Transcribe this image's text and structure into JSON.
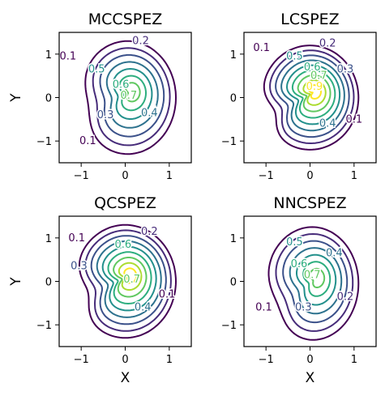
{
  "figure": {
    "xlabel": "X",
    "ylabel": "Y"
  },
  "chart_data": [
    {
      "type": "contour",
      "title": "MCCSPEZ",
      "xlabel": "",
      "ylabel": "Y",
      "xlim": [
        -1.5,
        1.5
      ],
      "ylim": [
        -1.5,
        1.5
      ],
      "xticks": [
        "−1",
        "0",
        "1"
      ],
      "yticks": [
        "−1",
        "0",
        "1"
      ],
      "levels": [
        0.1,
        0.2,
        0.3,
        0.4,
        0.5,
        0.6,
        0.7
      ],
      "contour_labels": [
        {
          "text": "0.1",
          "x": -1.3,
          "y": 0.95
        },
        {
          "text": "0.2",
          "x": 0.35,
          "y": 1.3
        },
        {
          "text": "0.5",
          "x": -0.65,
          "y": 0.65
        },
        {
          "text": "0.6",
          "x": -0.1,
          "y": 0.3
        },
        {
          "text": "0.7",
          "x": 0.08,
          "y": 0.05
        },
        {
          "text": "0.3",
          "x": -0.45,
          "y": -0.4
        },
        {
          "text": "0.4",
          "x": 0.55,
          "y": -0.35
        },
        {
          "text": "0.1",
          "x": -0.85,
          "y": -1.0
        }
      ]
    },
    {
      "type": "contour",
      "title": "LCSPEZ",
      "xlabel": "",
      "ylabel": "",
      "xlim": [
        -1.5,
        1.5
      ],
      "ylim": [
        -1.5,
        1.5
      ],
      "xticks": [
        "−1",
        "0",
        "1"
      ],
      "yticks": [
        "−1",
        "0",
        "1"
      ],
      "levels": [
        0.1,
        0.2,
        0.3,
        0.4,
        0.5,
        0.6,
        0.7,
        0.8,
        0.9
      ],
      "contour_labels": [
        {
          "text": "0.1",
          "x": -1.1,
          "y": 1.15
        },
        {
          "text": "0.2",
          "x": 0.4,
          "y": 1.25
        },
        {
          "text": "0.5",
          "x": -0.35,
          "y": 0.95
        },
        {
          "text": "0.3",
          "x": 0.8,
          "y": 0.65
        },
        {
          "text": "0.6",
          "x": 0.05,
          "y": 0.7
        },
        {
          "text": "0.7",
          "x": 0.2,
          "y": 0.5
        },
        {
          "text": "0.9",
          "x": 0.1,
          "y": 0.25
        },
        {
          "text": "0.4",
          "x": 0.4,
          "y": -0.6
        },
        {
          "text": "0.1",
          "x": 1.0,
          "y": -0.5
        }
      ]
    },
    {
      "type": "contour",
      "title": "QCSPEZ",
      "xlabel": "X",
      "ylabel": "Y",
      "xlim": [
        -1.5,
        1.5
      ],
      "ylim": [
        -1.5,
        1.5
      ],
      "xticks": [
        "−1",
        "0",
        "1"
      ],
      "yticks": [
        "−1",
        "0",
        "1"
      ],
      "levels": [
        0.1,
        0.2,
        0.3,
        0.4,
        0.5,
        0.6,
        0.7,
        0.8,
        0.9
      ],
      "contour_labels": [
        {
          "text": "0.1",
          "x": -1.1,
          "y": 1.0
        },
        {
          "text": "0.2",
          "x": 0.55,
          "y": 1.15
        },
        {
          "text": "0.6",
          "x": -0.05,
          "y": 0.85
        },
        {
          "text": "0.3",
          "x": -1.05,
          "y": 0.35
        },
        {
          "text": "0.7",
          "x": 0.15,
          "y": 0.05
        },
        {
          "text": "0.4",
          "x": 0.4,
          "y": -0.6
        },
        {
          "text": "0.1",
          "x": 0.95,
          "y": -0.3
        }
      ]
    },
    {
      "type": "contour",
      "title": "NNCSPEZ",
      "xlabel": "X",
      "ylabel": "",
      "xlim": [
        -1.5,
        1.5
      ],
      "ylim": [
        -1.5,
        1.5
      ],
      "xticks": [
        "−1",
        "0",
        "1"
      ],
      "yticks": [
        "−1",
        "0",
        "1"
      ],
      "levels": [
        0.1,
        0.2,
        0.3,
        0.4,
        0.5,
        0.6,
        0.7
      ],
      "contour_labels": [
        {
          "text": "0.5",
          "x": -0.35,
          "y": 0.9
        },
        {
          "text": "0.4",
          "x": 0.55,
          "y": 0.65
        },
        {
          "text": "0.6",
          "x": -0.25,
          "y": 0.4
        },
        {
          "text": "0.7",
          "x": 0.05,
          "y": 0.15
        },
        {
          "text": "0.2",
          "x": 0.8,
          "y": -0.35
        },
        {
          "text": "0.3",
          "x": -0.15,
          "y": -0.6
        },
        {
          "text": "0.1",
          "x": -1.05,
          "y": -0.6
        }
      ]
    }
  ]
}
